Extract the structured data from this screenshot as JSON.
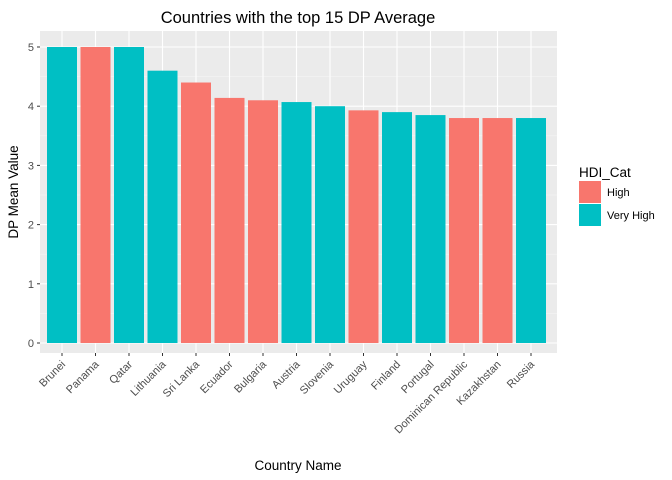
{
  "chart_data": {
    "type": "bar",
    "title": "Countries with the top 15 DP Average",
    "xlabel": "Country Name",
    "ylabel": "DP Mean Value",
    "ylim": [
      0,
      5.25
    ],
    "yticks": [
      0,
      1,
      2,
      3,
      4,
      5
    ],
    "grid": true,
    "legend": {
      "title": "HDI_Cat",
      "placement": "right",
      "entries": [
        {
          "label": "High",
          "color": "#F8766D"
        },
        {
          "label": "Very High",
          "color": "#00BFC4"
        }
      ]
    },
    "bars": [
      {
        "category": "Brunei",
        "value": 5.0,
        "group": "Very High"
      },
      {
        "category": "Panama",
        "value": 5.0,
        "group": "High"
      },
      {
        "category": "Qatar",
        "value": 5.0,
        "group": "Very High"
      },
      {
        "category": "Lithuania",
        "value": 4.6,
        "group": "Very High"
      },
      {
        "category": "Sri Lanka",
        "value": 4.4,
        "group": "High"
      },
      {
        "category": "Ecuador",
        "value": 4.14,
        "group": "High"
      },
      {
        "category": "Bulgaria",
        "value": 4.1,
        "group": "High"
      },
      {
        "category": "Austria",
        "value": 4.07,
        "group": "Very High"
      },
      {
        "category": "Slovenia",
        "value": 4.0,
        "group": "Very High"
      },
      {
        "category": "Uruguay",
        "value": 3.93,
        "group": "High"
      },
      {
        "category": "Finland",
        "value": 3.9,
        "group": "Very High"
      },
      {
        "category": "Portugal",
        "value": 3.85,
        "group": "Very High"
      },
      {
        "category": "Dominican Republic",
        "value": 3.8,
        "group": "High"
      },
      {
        "category": "Kazakhstan",
        "value": 3.8,
        "group": "High"
      },
      {
        "category": "Russia",
        "value": 3.8,
        "group": "Very High"
      }
    ]
  }
}
